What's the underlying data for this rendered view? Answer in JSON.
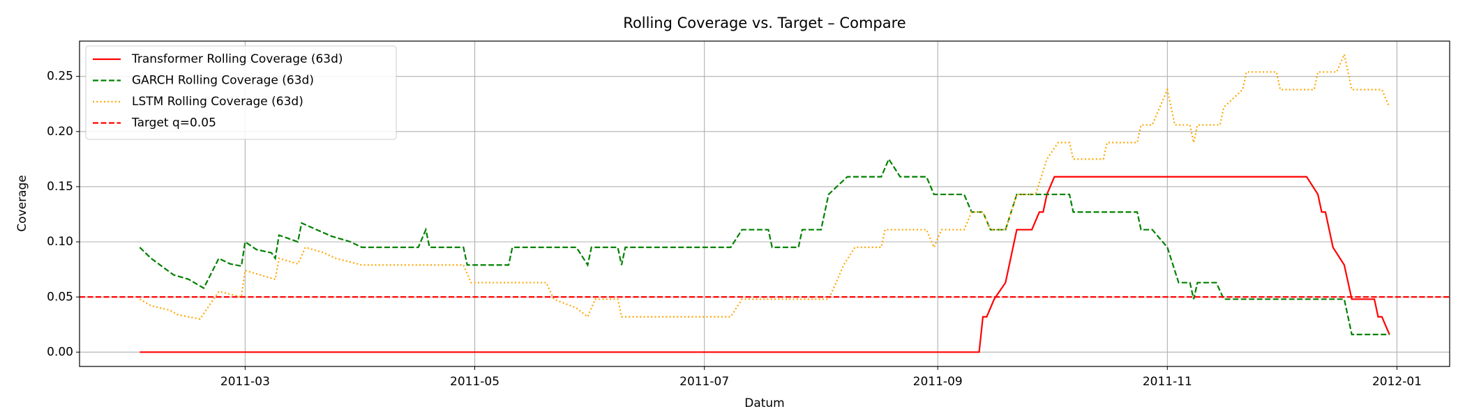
{
  "chart_data": {
    "type": "line",
    "title": "Rolling Coverage vs. Target – Compare",
    "x_label": "Datum",
    "y_label": "Coverage",
    "xlim": [
      "2011-01-16",
      "2012-01-15"
    ],
    "xticks": [
      "2011-03",
      "2011-05",
      "2011-07",
      "2011-09",
      "2011-11",
      "2012-01"
    ],
    "ylim": [
      -0.013,
      0.282
    ],
    "yticks": [
      {
        "value": 0,
        "label": "0.00"
      },
      {
        "value": 0.05,
        "label": "0.05"
      },
      {
        "value": 0.1,
        "label": "0.10"
      },
      {
        "value": 0.15,
        "label": "0.15"
      },
      {
        "value": 0.2,
        "label": "0.20"
      },
      {
        "value": 0.25,
        "label": "0.25"
      }
    ],
    "grid": true,
    "legend": "upper left",
    "series": [
      {
        "name": "Transformer Rolling Coverage (63d)",
        "color": "red",
        "style": "solid",
        "x": [
          "2011-02-01",
          "2011-09-12",
          "2011-09-13",
          "2011-09-14",
          "2011-09-16",
          "2011-09-19",
          "2011-09-22",
          "2011-09-26",
          "2011-09-28",
          "2011-09-29",
          "2011-09-30",
          "2011-10-02",
          "2011-12-08",
          "2011-12-11",
          "2011-12-12",
          "2011-12-13",
          "2011-12-15",
          "2011-12-18",
          "2011-12-20",
          "2011-12-26",
          "2011-12-27",
          "2011-12-28",
          "2011-12-30"
        ],
        "values": [
          0,
          0,
          0.032,
          0.032,
          0.048,
          0.063,
          0.111,
          0.111,
          0.127,
          0.127,
          0.143,
          0.159,
          0.159,
          0.143,
          0.127,
          0.127,
          0.095,
          0.079,
          0.048,
          0.048,
          0.032,
          0.032,
          0.016
        ]
      },
      {
        "name": "GARCH Rolling Coverage (63d)",
        "color": "green",
        "style": "dashed",
        "x": [
          "2011-02-01",
          "2011-02-04",
          "2011-02-06",
          "2011-02-10",
          "2011-02-14",
          "2011-02-18",
          "2011-02-22",
          "2011-02-25",
          "2011-02-28",
          "2011-03-01",
          "2011-03-04",
          "2011-03-08",
          "2011-03-09",
          "2011-03-10",
          "2011-03-15",
          "2011-03-16",
          "2011-03-20",
          "2011-03-24",
          "2011-03-29",
          "2011-04-01",
          "2011-04-16",
          "2011-04-18",
          "2011-04-19",
          "2011-04-28",
          "2011-04-29",
          "2011-05-10",
          "2011-05-11",
          "2011-05-28",
          "2011-05-31",
          "2011-06-01",
          "2011-06-08",
          "2011-06-09",
          "2011-06-10",
          "2011-07-08",
          "2011-07-11",
          "2011-07-18",
          "2011-07-19",
          "2011-07-26",
          "2011-07-27",
          "2011-08-01",
          "2011-08-03",
          "2011-08-08",
          "2011-08-17",
          "2011-08-19",
          "2011-08-22",
          "2011-08-29",
          "2011-08-31",
          "2011-09-08",
          "2011-09-10",
          "2011-09-13",
          "2011-09-15",
          "2011-09-19",
          "2011-09-22",
          "2011-10-06",
          "2011-10-07",
          "2011-10-24",
          "2011-10-25",
          "2011-10-28",
          "2011-11-01",
          "2011-11-04",
          "2011-11-07",
          "2011-11-08",
          "2011-11-09",
          "2011-11-14",
          "2011-11-16",
          "2011-12-18",
          "2011-12-20",
          "2011-12-30"
        ],
        "values": [
          0.095,
          0.085,
          0.08,
          0.07,
          0.066,
          0.058,
          0.085,
          0.08,
          0.078,
          0.1,
          0.093,
          0.09,
          0.085,
          0.106,
          0.1,
          0.117,
          0.111,
          0.105,
          0.1,
          0.095,
          0.095,
          0.111,
          0.095,
          0.095,
          0.079,
          0.079,
          0.095,
          0.095,
          0.079,
          0.095,
          0.095,
          0.079,
          0.095,
          0.095,
          0.111,
          0.111,
          0.095,
          0.095,
          0.111,
          0.111,
          0.143,
          0.159,
          0.159,
          0.175,
          0.159,
          0.159,
          0.143,
          0.143,
          0.127,
          0.127,
          0.111,
          0.111,
          0.143,
          0.143,
          0.127,
          0.127,
          0.111,
          0.111,
          0.095,
          0.063,
          0.063,
          0.048,
          0.063,
          0.063,
          0.048,
          0.048,
          0.016,
          0.016
        ]
      },
      {
        "name": "LSTM Rolling Coverage (63d)",
        "color": "orange",
        "style": "dotted",
        "x": [
          "2011-02-01",
          "2011-02-04",
          "2011-02-09",
          "2011-02-11",
          "2011-02-17",
          "2011-02-22",
          "2011-02-28",
          "2011-03-01",
          "2011-03-09",
          "2011-03-10",
          "2011-03-15",
          "2011-03-17",
          "2011-03-22",
          "2011-03-25",
          "2011-04-01",
          "2011-04-28",
          "2011-04-30",
          "2011-05-20",
          "2011-05-22",
          "2011-05-28",
          "2011-05-31",
          "2011-06-02",
          "2011-06-08",
          "2011-06-09",
          "2011-07-08",
          "2011-07-11",
          "2011-08-03",
          "2011-08-05",
          "2011-08-07",
          "2011-08-10",
          "2011-08-17",
          "2011-08-18",
          "2011-08-29",
          "2011-08-31",
          "2011-09-02",
          "2011-09-08",
          "2011-09-10",
          "2011-09-13",
          "2011-09-15",
          "2011-09-19",
          "2011-09-22",
          "2011-09-27",
          "2011-09-30",
          "2011-10-03",
          "2011-10-06",
          "2011-10-07",
          "2011-10-15",
          "2011-10-16",
          "2011-10-24",
          "2011-10-25",
          "2011-10-28",
          "2011-11-01",
          "2011-11-03",
          "2011-11-07",
          "2011-11-08",
          "2011-11-09",
          "2011-11-15",
          "2011-11-16",
          "2011-11-21",
          "2011-11-22",
          "2011-11-30",
          "2011-12-01",
          "2011-12-10",
          "2011-12-11",
          "2011-12-16",
          "2011-12-18",
          "2011-12-20",
          "2011-12-28",
          "2011-12-30"
        ],
        "values": [
          0.048,
          0.042,
          0.038,
          0.034,
          0.03,
          0.055,
          0.05,
          0.074,
          0.066,
          0.085,
          0.08,
          0.095,
          0.09,
          0.085,
          0.079,
          0.079,
          0.063,
          0.063,
          0.048,
          0.04,
          0.032,
          0.048,
          0.048,
          0.032,
          0.032,
          0.048,
          0.048,
          0.063,
          0.079,
          0.095,
          0.095,
          0.111,
          0.111,
          0.095,
          0.111,
          0.111,
          0.127,
          0.127,
          0.111,
          0.111,
          0.143,
          0.143,
          0.175,
          0.19,
          0.19,
          0.175,
          0.175,
          0.19,
          0.19,
          0.206,
          0.206,
          0.238,
          0.206,
          0.206,
          0.19,
          0.206,
          0.206,
          0.222,
          0.238,
          0.254,
          0.254,
          0.238,
          0.238,
          0.254,
          0.254,
          0.27,
          0.238,
          0.238,
          0.222
        ]
      }
    ],
    "reference_lines": [
      {
        "name": "Target q=0.05",
        "color": "red",
        "style": "dashed",
        "value": 0.05
      }
    ]
  }
}
